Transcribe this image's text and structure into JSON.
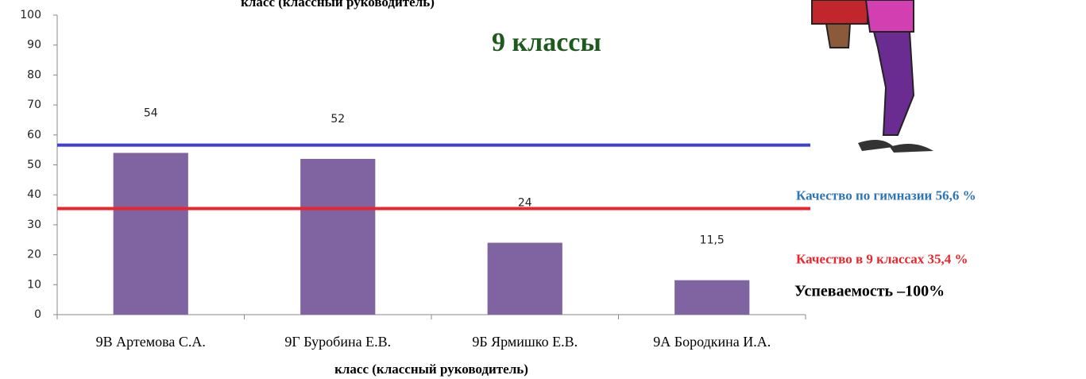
{
  "chart_data": {
    "type": "bar",
    "header_text": "класс (классный  руководитель)",
    "title": "9 классы",
    "x_label": "класс (классный  руководитель)",
    "categories": [
      "9В  Артемова С.А.",
      "9Г  Буробина Е.В.",
      "9Б  Ярмишко Е.В.",
      "9А  Бородкина И.А."
    ],
    "values": [
      54,
      52,
      24,
      11.5
    ],
    "value_labels": [
      "54",
      "52",
      "24",
      "11,5"
    ],
    "color": "#8064a2",
    "ylim": [
      0,
      100
    ],
    "yticks": [
      0,
      10,
      20,
      30,
      40,
      50,
      60,
      70,
      80,
      90,
      100
    ],
    "reference_lines": [
      {
        "value": 56.6,
        "label": "Качество по гимназии  56,6 %",
        "color": "#3f3fd0",
        "label_color": "#2e75b6"
      },
      {
        "value": 35.4,
        "label": "Качество в 9 классах 35,4 %",
        "color": "#e8262b",
        "label_color": "#e8262b"
      }
    ],
    "annotation": "Успеваемость –100%"
  }
}
